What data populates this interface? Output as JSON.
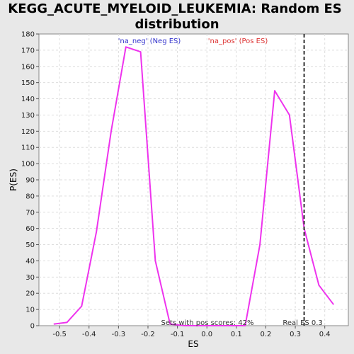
{
  "chart_data": {
    "type": "line",
    "title_lines": [
      "KEGG_ACUTE_MYELOID_LEUKEMIA: Random ES",
      "distribution"
    ],
    "xlabel": "ES",
    "ylabel": "P(ES)",
    "xlim": [
      -0.57,
      0.48
    ],
    "ylim": [
      0,
      180
    ],
    "xticks": [
      -0.5,
      -0.4,
      -0.3,
      -0.2,
      -0.1,
      0.0,
      0.1,
      0.2,
      0.3,
      0.4
    ],
    "xtick_labels": [
      "-0.5",
      "-0.4",
      "-0.3",
      "-0.2",
      "-0.1",
      "0.0",
      "0.1",
      "0.2",
      "0.3",
      "0.4"
    ],
    "yticks": [
      0,
      10,
      20,
      30,
      40,
      50,
      60,
      70,
      80,
      90,
      100,
      110,
      120,
      130,
      140,
      150,
      160,
      170,
      180
    ],
    "grid": true,
    "legend": [
      {
        "label": "'na_neg' (Neg ES)",
        "color": "#3333cc"
      },
      {
        "label": "'na_pos' (Pos ES)",
        "color": "#dd3333"
      }
    ],
    "series": [
      {
        "color": "#ee33ee",
        "x": [
          -0.52,
          -0.475,
          -0.425,
          -0.375,
          -0.325,
          -0.275,
          -0.225,
          -0.175,
          -0.125,
          -0.075,
          -0.025,
          0.025,
          0.075,
          0.13,
          0.18,
          0.23,
          0.28,
          0.33,
          0.38,
          0.43
        ],
        "y": [
          1,
          2,
          12,
          58,
          120,
          172,
          169,
          40,
          1,
          0,
          0,
          0,
          0,
          0,
          50,
          145,
          130,
          60,
          25,
          13
        ]
      }
    ],
    "real_es": {
      "x": 0.33,
      "label": "Real ES 0.3",
      "color": "#444444"
    },
    "annotation": "Sets with pos scores: 42%"
  }
}
